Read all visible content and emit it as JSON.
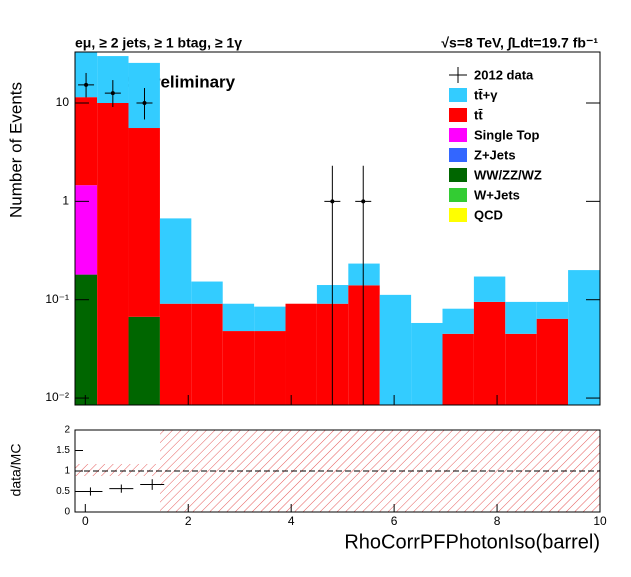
{
  "chart_data": [
    {
      "type": "stacked-histogram",
      "title": "eμ, ≥ 2 jets, ≥ 1 btag, ≥ 1γ",
      "subtitle": "√s=8 TeV, ∫Ldt=19.7 fb⁻¹",
      "annotation": "CMS Preliminary",
      "ylabel": "Number of Events",
      "log_y": true,
      "legend": "top-right",
      "bins": [
        -0.2,
        0.23,
        0.84,
        1.45,
        2.06,
        2.67,
        3.28,
        3.89,
        4.5,
        5.11,
        5.72,
        6.33,
        6.94,
        7.55,
        8.16,
        8.77,
        9.38,
        10
      ],
      "series": [
        {
          "name": "tt̄+γ",
          "color": "#33ccff",
          "values": [
            25,
            20,
            20,
            0.58,
            0.062,
            0.043,
            0.037,
            0,
            0.05,
            0.093,
            0.112,
            0.058,
            0.036,
            0.077,
            0.05,
            0.031,
            0.2
          ]
        },
        {
          "name": "tt̄",
          "color": "#ff0000",
          "values": [
            10,
            10,
            5.5,
            0.091,
            0.091,
            0.048,
            0.048,
            0.091,
            0.091,
            0.14,
            0,
            0,
            0.045,
            0.095,
            0.045,
            0.064,
            0
          ]
        },
        {
          "name": "Single Top",
          "color": "#ff00ff",
          "values": [
            1.28,
            0,
            0,
            0,
            0,
            0,
            0,
            0,
            0,
            0,
            0,
            0,
            0,
            0,
            0,
            0,
            0
          ]
        },
        {
          "name": "Z+Jets",
          "color": "#3366ff",
          "values": [
            0,
            0,
            0,
            0,
            0,
            0,
            0,
            0,
            0,
            0,
            0,
            0,
            0,
            0,
            0,
            0,
            0
          ]
        },
        {
          "name": "WW/ZZ/WZ",
          "color": "#006600",
          "values": [
            0.18,
            0,
            0.067,
            0,
            0,
            0,
            0,
            0,
            0,
            0,
            0,
            0,
            0,
            0,
            0,
            0,
            0
          ]
        },
        {
          "name": "W+Jets",
          "color": "#33cc33",
          "values": [
            0,
            0,
            0,
            0,
            0,
            0,
            0,
            0,
            0,
            0,
            0,
            0,
            0,
            0,
            0,
            0,
            0
          ]
        },
        {
          "name": "QCD",
          "color": "#ffff00",
          "values": [
            0,
            0,
            0,
            0,
            0,
            0,
            0,
            0,
            0,
            0,
            0,
            0,
            0,
            0,
            0,
            0,
            0
          ]
        }
      ],
      "data": {
        "name": "2012 data",
        "color": "#000000",
        "x": [
          0.015,
          0.535,
          1.15,
          4.8,
          5.4
        ],
        "values": [
          15.3,
          12.6,
          10,
          1,
          1
        ],
        "err_low": [
          3.9,
          3.5,
          3.2,
          1,
          1
        ],
        "err_high": [
          4.9,
          4.5,
          4.2,
          1.3,
          1.3
        ]
      },
      "xlim": [
        -0.2,
        10
      ],
      "xticks": [
        0,
        2,
        4,
        6,
        8,
        10
      ],
      "ylim": [
        0.0085,
        33
      ],
      "yticks": [
        {
          "value": 0.01,
          "label": "10⁻²"
        },
        {
          "value": 0.1,
          "label": "10⁻¹"
        },
        1,
        10
      ]
    },
    {
      "type": "ratio",
      "xlabel": "RhoCorrPFPhotonIso(barrel)",
      "ylabel": "data/MC",
      "x": [
        0.1,
        0.7,
        1.3
      ],
      "values": [
        0.5,
        0.57,
        0.67
      ],
      "err": [
        0.1,
        0.1,
        0.13
      ],
      "color": "#000000",
      "xlim": [
        -0.2,
        10
      ],
      "xticks": [
        0,
        2,
        4,
        6,
        8,
        10
      ],
      "ylim": [
        0,
        2
      ],
      "yticks": [
        0,
        0.5,
        1,
        1.5,
        2
      ]
    }
  ]
}
